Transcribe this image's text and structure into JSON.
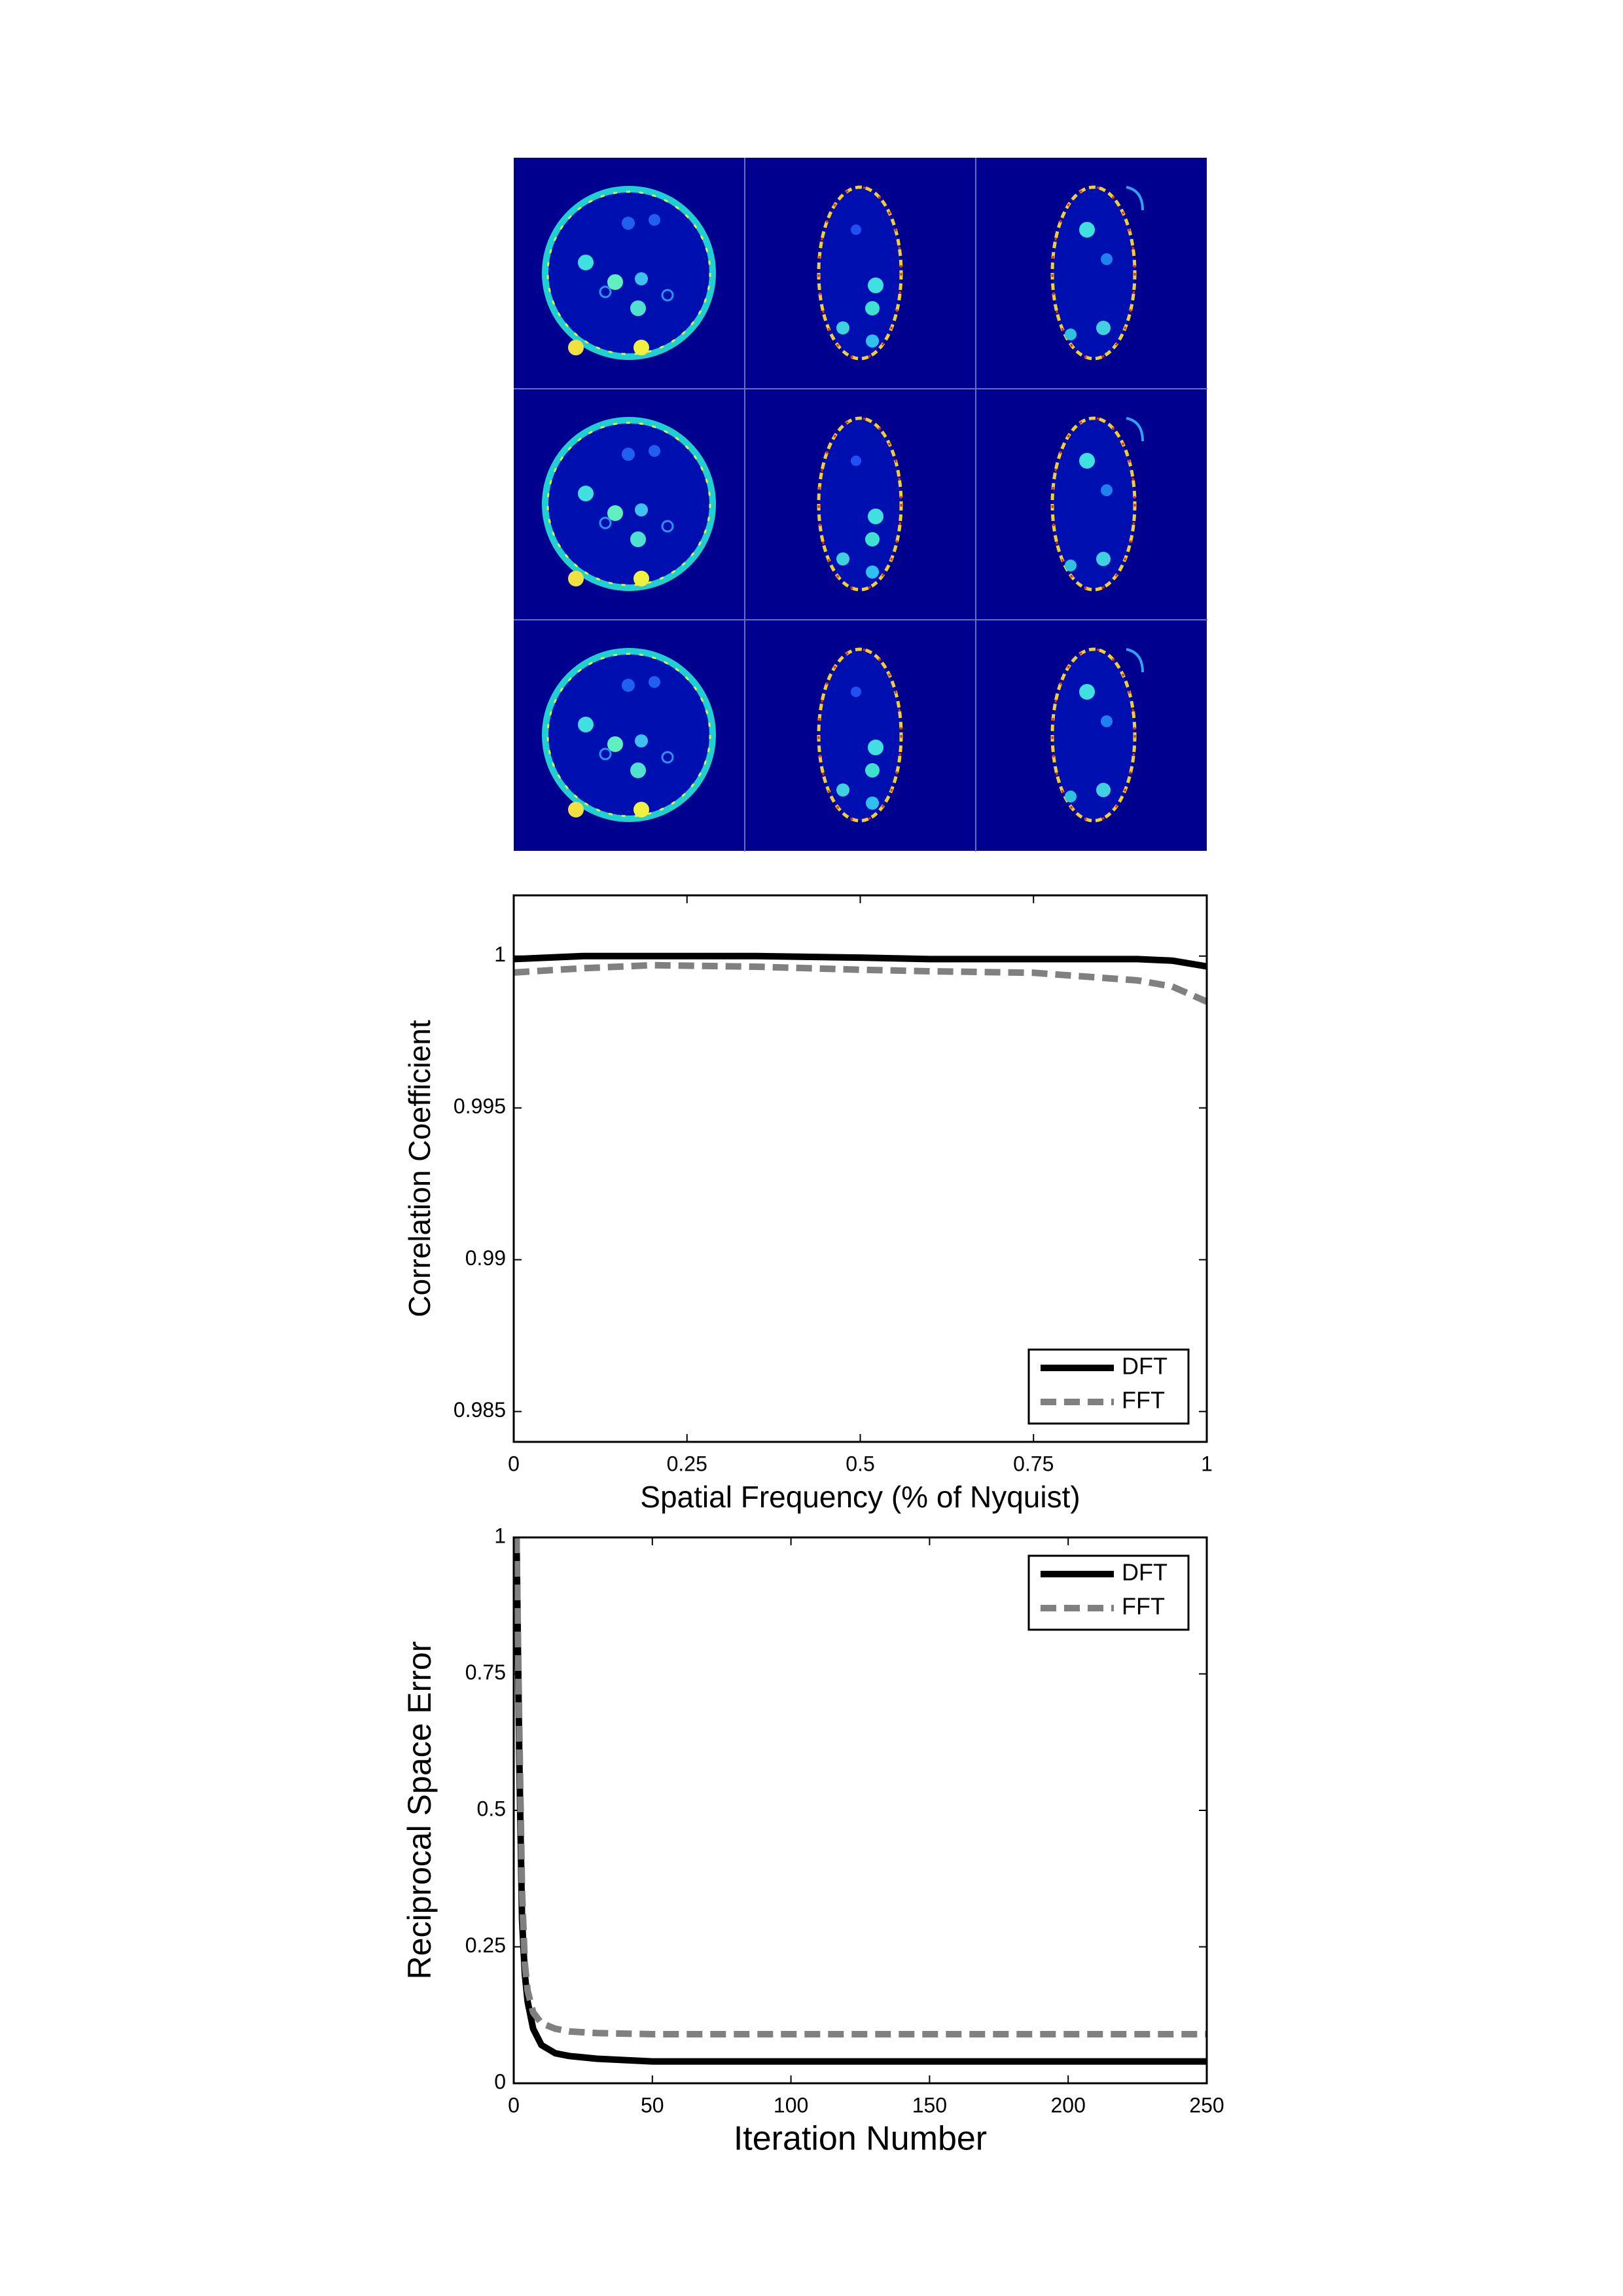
{
  "chart_data": [
    {
      "type": "line",
      "y_label": "Correlation Coefficient",
      "x_label": "Spatial Frequency (% of Nyquist)",
      "x": [
        0,
        0.1,
        0.2,
        0.35,
        0.5,
        0.6,
        0.75,
        0.9,
        0.95,
        1
      ],
      "series": [
        {
          "name": "DFT",
          "color": "#000000",
          "line_style": "solid",
          "values": [
            0.9999,
            1.0,
            1.0,
            1.0,
            0.99995,
            0.9999,
            0.9999,
            0.9999,
            0.99985,
            0.99966
          ]
        },
        {
          "name": "FFT",
          "color": "#808080",
          "line_style": "dashed",
          "values": [
            0.99946,
            0.9996,
            0.9997,
            0.99965,
            0.99955,
            0.9995,
            0.99945,
            0.9992,
            0.999,
            0.9985
          ]
        }
      ],
      "xlim": [
        0,
        1
      ],
      "xticks": [
        0,
        0.25,
        0.5,
        0.75,
        1
      ],
      "ylim": [
        0.984,
        1.002
      ],
      "yticks": [
        0.985,
        0.99,
        0.995,
        1
      ],
      "grid": false,
      "legend": "lower right"
    },
    {
      "type": "line",
      "y_label": "Reciprocal Space Error",
      "x_label": "Iteration Number",
      "x": [
        1,
        2,
        3,
        4,
        5,
        7,
        10,
        15,
        20,
        30,
        50,
        100,
        150,
        200,
        250
      ],
      "series": [
        {
          "name": "DFT",
          "color": "#000000",
          "line_style": "solid",
          "values": [
            1,
            0.6,
            0.3,
            0.2,
            0.15,
            0.1,
            0.07,
            0.055,
            0.05,
            0.045,
            0.04,
            0.04,
            0.04,
            0.04,
            0.04
          ]
        },
        {
          "name": "FFT",
          "color": "#808080",
          "line_style": "dashed",
          "values": [
            1,
            0.65,
            0.35,
            0.22,
            0.17,
            0.13,
            0.11,
            0.1,
            0.095,
            0.092,
            0.09,
            0.09,
            0.09,
            0.09,
            0.09
          ]
        }
      ],
      "xlim": [
        0,
        250
      ],
      "xticks": [
        0,
        50,
        100,
        150,
        200,
        250
      ],
      "ylim": [
        0,
        1
      ],
      "yticks": [
        0,
        0.25,
        0.5,
        0.75,
        1
      ],
      "grid": false,
      "legend": "upper right"
    }
  ]
}
